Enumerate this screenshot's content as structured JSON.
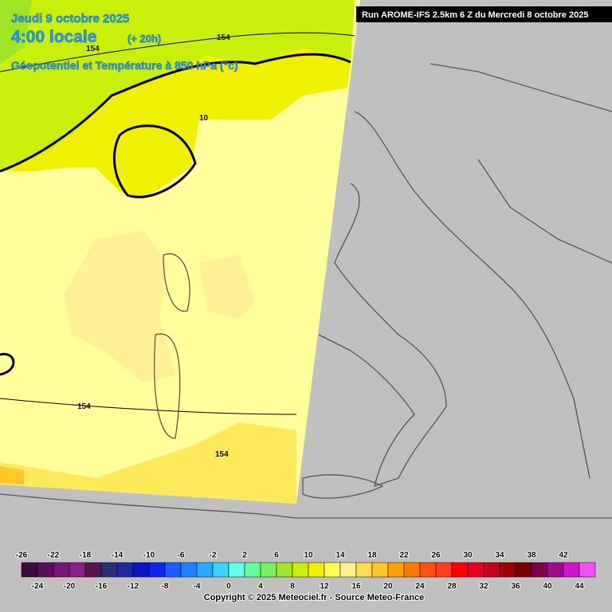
{
  "header": {
    "date": "Jeudi 9 octobre 2025",
    "time": "4:00 locale",
    "lead": "(+ 20h)",
    "field": "Géopotentiel et Température à 850 hPa (°c)",
    "run": "Run AROME-IFS 2.5km 6 Z du Mercredi 8 octobre 2025"
  },
  "contour_labels": [
    "154",
    "154",
    "154",
    "154",
    "10"
  ],
  "legend": {
    "ticks_top": [
      -26,
      -22,
      -18,
      -14,
      -10,
      -6,
      -2,
      2,
      6,
      10,
      14,
      18,
      22,
      26,
      30,
      34,
      38,
      42
    ],
    "ticks_bottom": [
      -24,
      -20,
      -16,
      -12,
      -8,
      -4,
      0,
      4,
      8,
      12,
      16,
      20,
      24,
      28,
      32,
      36,
      40,
      44
    ],
    "colors": [
      "#3c0a3c",
      "#5a0f5a",
      "#781478",
      "#8c1e8c",
      "#5a1450",
      "#2d2d78",
      "#1e28a0",
      "#0a14c8",
      "#0a28f0",
      "#1e5aff",
      "#1e82ff",
      "#28aaff",
      "#3cd2ff",
      "#64ffe6",
      "#64ff96",
      "#78f064",
      "#a0e628",
      "#c8f00a",
      "#f0f000",
      "#ffff50",
      "#fff096",
      "#ffdc50",
      "#ffc828",
      "#ffa000",
      "#ff7800",
      "#ff5014",
      "#ff3c1e",
      "#ff0000",
      "#e6001e",
      "#c8001e",
      "#a00000",
      "#780000",
      "#800050",
      "#a00a8c",
      "#d214d2",
      "#f050f0"
    ]
  },
  "footer": {
    "copyright": "Copyright © 2025 Meteociel.fr - Source Meteo-France"
  }
}
